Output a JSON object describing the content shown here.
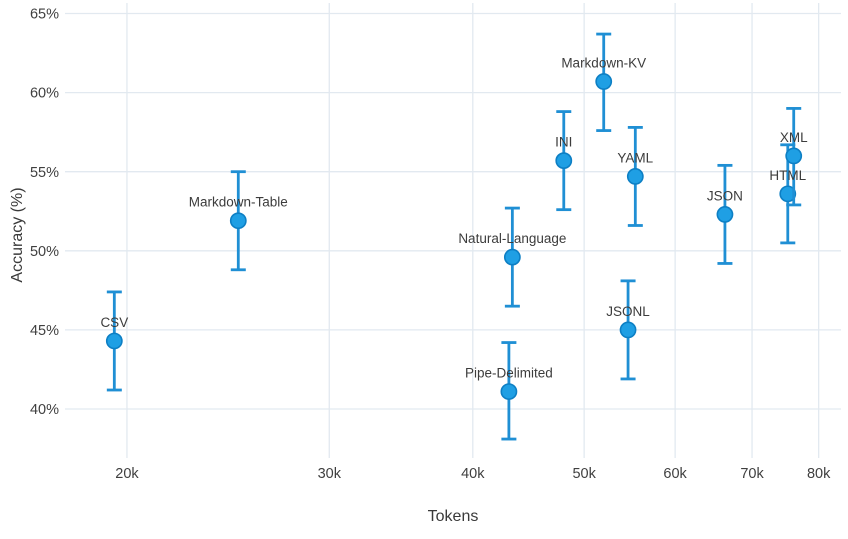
{
  "colors": {
    "background": "#ffffff",
    "gridline": "#e2e9f0",
    "errorbar": "#1f8fd4",
    "marker_fill": "#1f9fe4",
    "marker_stroke": "#0d7fc4",
    "tick_label_text": "#3f3f3f",
    "axis_title_text": "#3a3a3a",
    "point_label_text": "#3c3c3c"
  },
  "chart_data": {
    "type": "scatter",
    "title": "",
    "xlabel": "Tokens",
    "ylabel": "Accuracy (%)",
    "x_scale": "log",
    "y_scale": "linear",
    "grid": true,
    "legend": "none",
    "error_bars": true,
    "x_ticks": [
      {
        "value": 20000,
        "label": "20k"
      },
      {
        "value": 30000,
        "label": "30k"
      },
      {
        "value": 40000,
        "label": "40k"
      },
      {
        "value": 50000,
        "label": "50k"
      },
      {
        "value": 60000,
        "label": "60k"
      },
      {
        "value": 70000,
        "label": "70k"
      },
      {
        "value": 80000,
        "label": "80k"
      }
    ],
    "y_ticks": [
      {
        "value": 65,
        "label": "65%"
      },
      {
        "value": 60,
        "label": "60%"
      },
      {
        "value": 55,
        "label": "55%"
      },
      {
        "value": 50,
        "label": "50%"
      },
      {
        "value": 45,
        "label": "45%"
      },
      {
        "value": 40,
        "label": "40%"
      }
    ],
    "x_range": [
      17500,
      84000
    ],
    "y_range": [
      36.8,
      65.3
    ],
    "points": [
      {
        "label": "CSV",
        "tokens": 19500,
        "accuracy": 44.3,
        "ci_low": 41.2,
        "ci_high": 47.4
      },
      {
        "label": "Markdown-Table",
        "tokens": 25000,
        "accuracy": 51.9,
        "ci_low": 48.8,
        "ci_high": 55.0
      },
      {
        "label": "Natural-Language",
        "tokens": 43300,
        "accuracy": 49.6,
        "ci_low": 46.5,
        "ci_high": 52.7
      },
      {
        "label": "Pipe-Delimited",
        "tokens": 43000,
        "accuracy": 41.1,
        "ci_low": 38.1,
        "ci_high": 44.2
      },
      {
        "label": "INI",
        "tokens": 48000,
        "accuracy": 55.7,
        "ci_low": 52.6,
        "ci_high": 58.8
      },
      {
        "label": "Markdown-KV",
        "tokens": 52000,
        "accuracy": 60.7,
        "ci_low": 57.6,
        "ci_high": 63.7
      },
      {
        "label": "JSONL",
        "tokens": 54600,
        "accuracy": 45.0,
        "ci_low": 41.9,
        "ci_high": 48.1
      },
      {
        "label": "YAML",
        "tokens": 55400,
        "accuracy": 54.7,
        "ci_low": 51.6,
        "ci_high": 57.8
      },
      {
        "label": "JSON",
        "tokens": 66300,
        "accuracy": 52.3,
        "ci_low": 49.2,
        "ci_high": 55.4
      },
      {
        "label": "HTML",
        "tokens": 75200,
        "accuracy": 53.6,
        "ci_low": 50.5,
        "ci_high": 56.7
      },
      {
        "label": "XML",
        "tokens": 76100,
        "accuracy": 56.0,
        "ci_low": 52.9,
        "ci_high": 59.0
      }
    ]
  }
}
